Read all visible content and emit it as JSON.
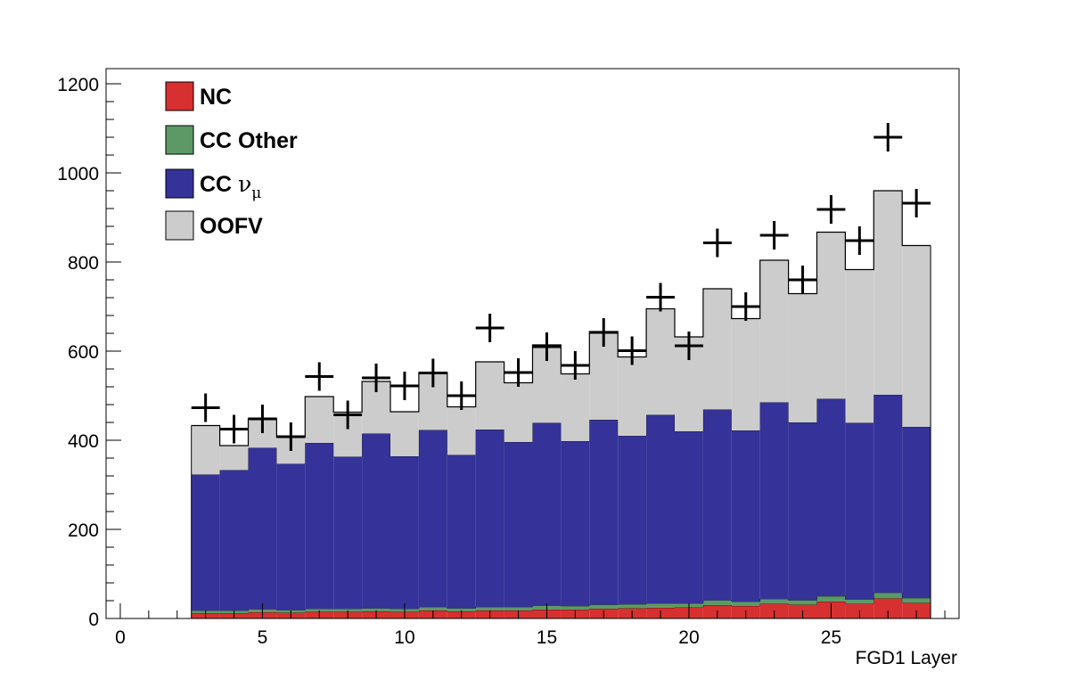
{
  "chart_data": {
    "type": "bar",
    "title": "",
    "xlabel": "FGD1 Layer",
    "ylabel": "",
    "xlim": [
      -0.5,
      29.5
    ],
    "ylim": [
      0,
      1200
    ],
    "x_ticks": [
      "0",
      "5",
      "10",
      "15",
      "20",
      "25"
    ],
    "x_tick_values": [
      0,
      5,
      10,
      15,
      20,
      25
    ],
    "y_ticks": [
      "0",
      "200",
      "400",
      "600",
      "800",
      "1000",
      "1200"
    ],
    "y_tick_values": [
      0,
      200,
      400,
      600,
      800,
      1000,
      1200
    ],
    "grid": false,
    "stacked": true,
    "legend_position": "top-left",
    "x": [
      3,
      4,
      5,
      6,
      7,
      8,
      9,
      10,
      11,
      12,
      13,
      14,
      15,
      16,
      17,
      18,
      19,
      20,
      21,
      22,
      23,
      24,
      25,
      26,
      27,
      28
    ],
    "series": [
      {
        "name": "NC",
        "color": "#d63031",
        "values": [
          12,
          12,
          14,
          13,
          15,
          15,
          16,
          15,
          18,
          16,
          18,
          18,
          20,
          20,
          22,
          23,
          24,
          25,
          30,
          28,
          33,
          31,
          38,
          33,
          45,
          35
        ]
      },
      {
        "name": "CC Other",
        "color": "#5d9966",
        "values": [
          6,
          6,
          7,
          6,
          7,
          7,
          7,
          7,
          8,
          7,
          8,
          8,
          9,
          8,
          9,
          9,
          10,
          9,
          11,
          10,
          11,
          10,
          12,
          10,
          13,
          11
        ]
      },
      {
        "name": "CC ν_μ",
        "color": "#353399",
        "values": [
          305,
          315,
          362,
          328,
          372,
          341,
          392,
          342,
          397,
          344,
          398,
          370,
          410,
          370,
          415,
          378,
          423,
          386,
          428,
          384,
          441,
          399,
          443,
          396,
          444,
          384
        ]
      },
      {
        "name": "OOFV",
        "color": "#cccccc",
        "values": [
          110,
          55,
          66,
          60,
          104,
          100,
          117,
          100,
          129,
          108,
          152,
          133,
          175,
          151,
          198,
          177,
          238,
          212,
          271,
          251,
          319,
          289,
          374,
          344,
          458,
          407
        ]
      }
    ],
    "data_points": [
      473,
      425,
      448,
      408,
      543,
      457,
      540,
      522,
      551,
      500,
      652,
      552,
      610,
      568,
      642,
      601,
      721,
      612,
      843,
      700,
      860,
      760,
      918,
      848,
      1080,
      932
    ],
    "legend": [
      {
        "label": "NC",
        "base": "NC",
        "sub": "",
        "color": "#d63031"
      },
      {
        "label": "CC Other",
        "base": "CC Other",
        "sub": "",
        "color": "#5d9966"
      },
      {
        "label": "CC ν_μ",
        "base": "CC ν",
        "sub": "μ",
        "color": "#353399"
      },
      {
        "label": "OOFV",
        "base": "OOFV",
        "sub": "",
        "color": "#cccccc"
      }
    ]
  }
}
